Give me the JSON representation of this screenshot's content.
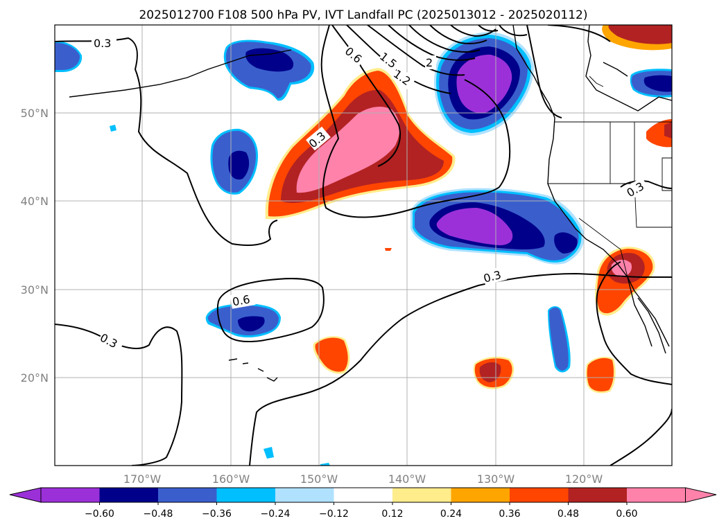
{
  "title": "2025012700 F108 500 hPa PV, IVT Landfall PC (2025013012 - 2025020112)",
  "map": {
    "lon_labels": [
      "170°W",
      "160°W",
      "150°W",
      "140°W",
      "130°W",
      "120°W"
    ],
    "lat_labels": [
      "50°N",
      "40°N",
      "30°N",
      "20°N"
    ],
    "contour_labels": [
      "0.3",
      "0.6",
      "1.5",
      "1.2",
      "2",
      "0.3",
      "0.3",
      "0.6",
      "0.3",
      "0.3"
    ]
  },
  "colorbar": {
    "ticks": [
      "−0.60",
      "−0.48",
      "−0.36",
      "−0.24",
      "−0.12",
      "0.12",
      "0.24",
      "0.36",
      "0.48",
      "0.60"
    ],
    "colors": {
      "neg_extreme": "#9b30d9",
      "neg_060": "#00008b",
      "neg_048": "#3a5fcd",
      "neg_036": "#00bfff",
      "neg_024": "#b0e2ff",
      "neutral": "#ffffff",
      "pos_012": "#ffec8b",
      "pos_024": "#ffa500",
      "pos_036": "#ff4500",
      "pos_048": "#b22222",
      "pos_extreme": "#ff82ab"
    }
  }
}
